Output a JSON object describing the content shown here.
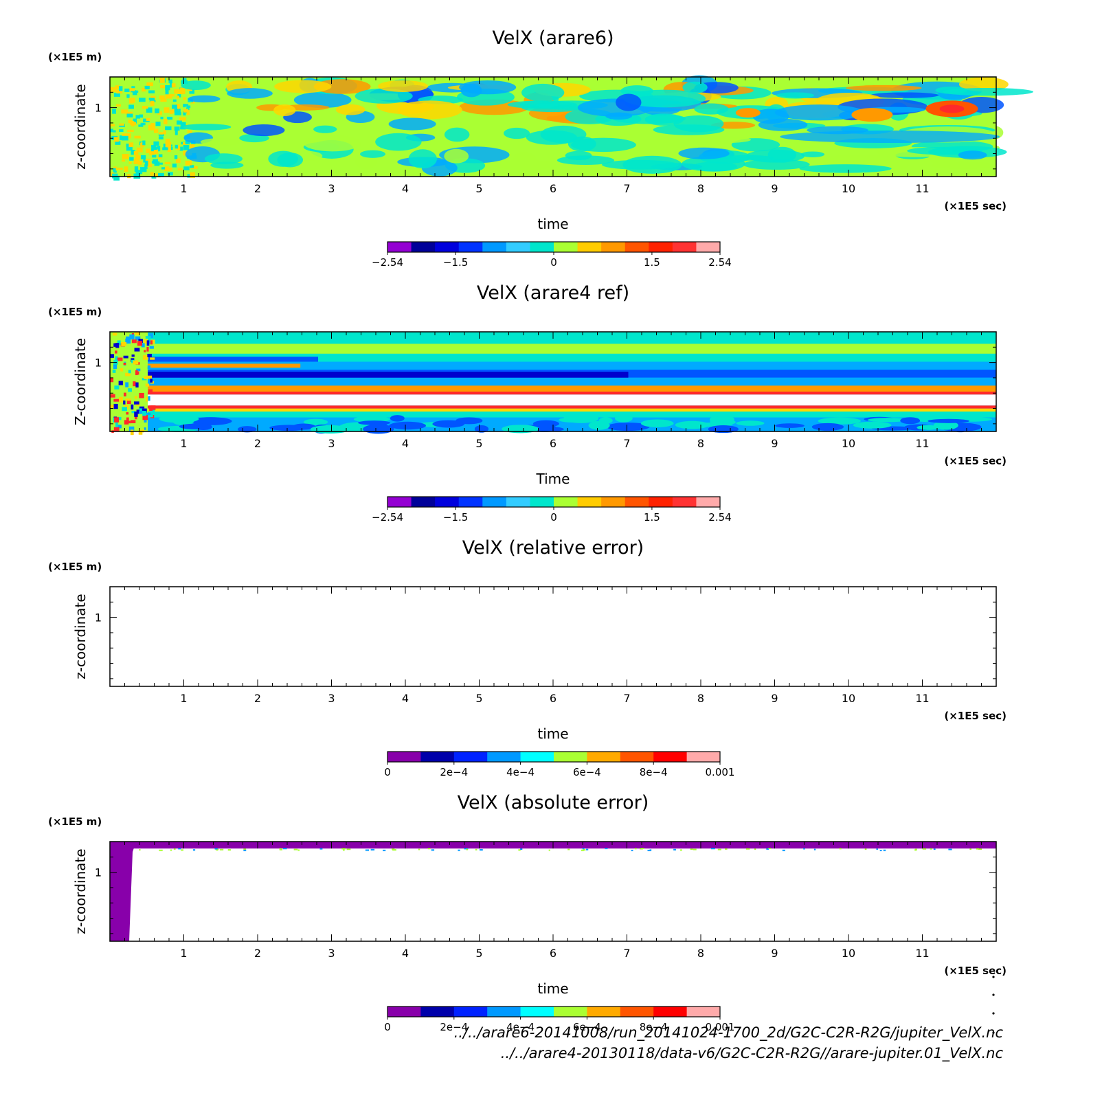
{
  "chart_data": [
    {
      "type": "heatmap",
      "title": "VelX (arare6)",
      "xlabel": "time",
      "ylabel": "z-coordinate",
      "x_unit": "(×1E5 sec)",
      "y_unit": "(×1E5 m)",
      "x_ticks": [
        "1",
        "2",
        "3",
        "4",
        "5",
        "6",
        "7",
        "8",
        "9",
        "10",
        "11"
      ],
      "y_ticks": [
        "1"
      ],
      "xlim": [
        0,
        12
      ],
      "ylim": [
        0.55,
        1.2
      ],
      "pattern": "turbulent",
      "colorbar": {
        "min": -2.54,
        "max": 2.54,
        "tick_labels": [
          "-2.54",
          "-1.5",
          "0",
          "1.5",
          "2.54"
        ],
        "colors": [
          "#9400d3",
          "#000099",
          "#0000dd",
          "#0033ff",
          "#0099ff",
          "#33ccff",
          "#00e6cc",
          "#aaff33",
          "#ffcc00",
          "#ff9900",
          "#ff5500",
          "#ff2200",
          "#ff3333",
          "#ffaaaa"
        ]
      }
    },
    {
      "type": "heatmap",
      "title": "VelX (arare4 ref)",
      "xlabel": "Time",
      "ylabel": "Z-coordinate",
      "x_unit": "(×1E5 sec)",
      "y_unit": "(×1E5 m)",
      "x_ticks": [
        "1",
        "2",
        "3",
        "4",
        "5",
        "6",
        "7",
        "8",
        "9",
        "10",
        "11"
      ],
      "y_ticks": [
        "1"
      ],
      "xlim": [
        0,
        12
      ],
      "ylim": [
        0.55,
        1.2
      ],
      "pattern": "banded",
      "colorbar": {
        "min": -2.54,
        "max": 2.54,
        "tick_labels": [
          "-2.54",
          "-1.5",
          "0",
          "1.5",
          "2.54"
        ],
        "colors": [
          "#9400d3",
          "#000099",
          "#0000dd",
          "#0033ff",
          "#0099ff",
          "#33ccff",
          "#00e6cc",
          "#aaff33",
          "#ffcc00",
          "#ff9900",
          "#ff5500",
          "#ff2200",
          "#ff3333",
          "#ffaaaa"
        ]
      }
    },
    {
      "type": "heatmap",
      "title": "VelX (relative error)",
      "xlabel": "time",
      "ylabel": "z-coordinate",
      "x_unit": "(×1E5 sec)",
      "y_unit": "(×1E5 m)",
      "x_ticks": [
        "1",
        "2",
        "3",
        "4",
        "5",
        "6",
        "7",
        "8",
        "9",
        "10",
        "11"
      ],
      "y_ticks": [
        "1"
      ],
      "xlim": [
        0,
        12
      ],
      "ylim": [
        0.55,
        1.2
      ],
      "pattern": "empty",
      "colorbar": {
        "min": 0,
        "max": 0.001,
        "tick_labels": [
          "0",
          "2e-4",
          "4e-4",
          "6e-4",
          "8e-4",
          "0.001"
        ],
        "colors": [
          "#8800aa",
          "#0000aa",
          "#0022ff",
          "#0099ff",
          "#00ffff",
          "#aaff33",
          "#ffaa00",
          "#ff5500",
          "#ff0000",
          "#ffaaaa"
        ]
      }
    },
    {
      "type": "heatmap",
      "title": "VelX (absolute error)",
      "xlabel": "time",
      "ylabel": "z-coordinate",
      "x_unit": "(×1E5 sec)",
      "y_unit": "(×1E5 m)",
      "x_ticks": [
        "1",
        "2",
        "3",
        "4",
        "5",
        "6",
        "7",
        "8",
        "9",
        "10",
        "11"
      ],
      "y_ticks": [
        "1"
      ],
      "xlim": [
        0,
        12
      ],
      "ylim": [
        0.55,
        1.2
      ],
      "pattern": "edge",
      "colorbar": {
        "min": 0,
        "max": 0.001,
        "tick_labels": [
          "0",
          "2e-4",
          "4e-4",
          "6e-4",
          "8e-4",
          "0.001"
        ],
        "colors": [
          "#8800aa",
          "#0000aa",
          "#0022ff",
          "#0099ff",
          "#00ffff",
          "#aaff33",
          "#ffaa00",
          "#ff5500",
          "#ff0000",
          "#ffaaaa"
        ]
      }
    }
  ],
  "footer": {
    "line1": "../../arare6-20141008/run_20141024-1700_2d/G2C-C2R-R2G/jupiter_VelX.nc",
    "line2": "../../arare4-20130118/data-v6/G2C-C2R-R2G//arare-jupiter.01_VelX.nc"
  }
}
